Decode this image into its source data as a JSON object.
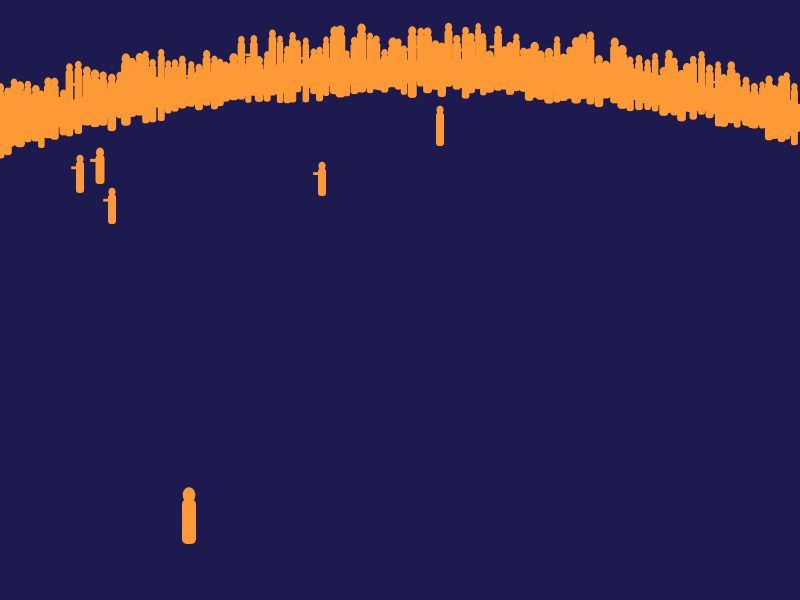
{
  "image": {
    "background": "#1c1a4e",
    "foreground": "#fd9a35"
  }
}
